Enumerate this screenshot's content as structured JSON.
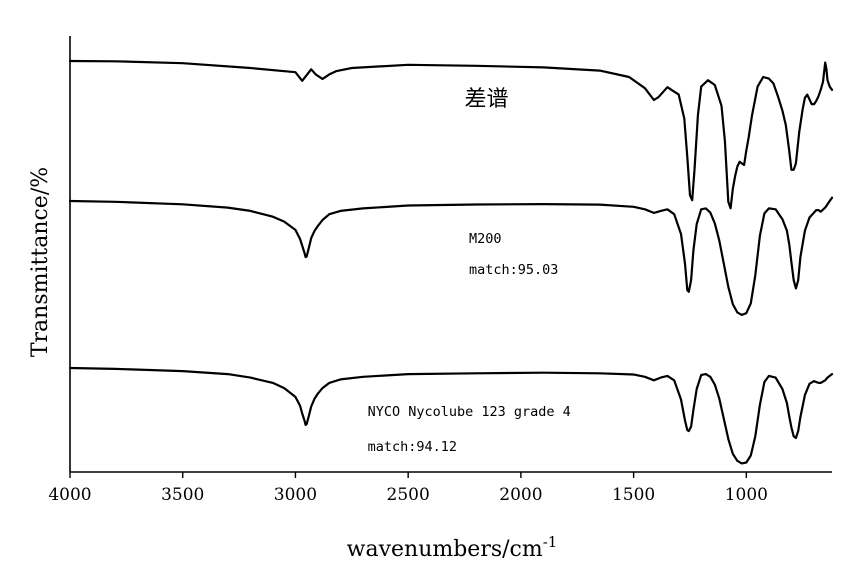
{
  "chart_data": {
    "type": "line",
    "xlabel": "wavenumbers/cm",
    "xlabel_superscript": "-1",
    "ylabel": "Transmittance/%",
    "xlim": [
      4000,
      620
    ],
    "x_reversed": true,
    "x_ticks": [
      4000,
      3500,
      3000,
      2500,
      2000,
      1500,
      1000
    ],
    "y_ticks_shown": false,
    "grid": false,
    "annotations": [
      {
        "lines": [
          "差谱"
        ],
        "x": 2250,
        "series": "diff"
      },
      {
        "lines": [
          "M200",
          "match:95.03"
        ],
        "x": 2230,
        "series": "m200"
      },
      {
        "lines": [
          "NYCO Nycolube 123 grade 4",
          "match:94.12"
        ],
        "x": 2680,
        "series": "nyco"
      }
    ],
    "series": [
      {
        "id": "diff",
        "baseline": 100,
        "x": [
          4000,
          3800,
          3500,
          3200,
          3000,
          2970,
          2950,
          2930,
          2910,
          2880,
          2850,
          2820,
          2750,
          2500,
          2200,
          1900,
          1650,
          1520,
          1450,
          1410,
          1390,
          1350,
          1300,
          1275,
          1262,
          1250,
          1240,
          1230,
          1215,
          1200,
          1170,
          1140,
          1110,
          1095,
          1080,
          1070,
          1060,
          1050,
          1040,
          1030,
          1020,
          1010,
          1000,
          990,
          975,
          950,
          925,
          900,
          880,
          860,
          840,
          825,
          810,
          800,
          790,
          780,
          765,
          750,
          740,
          730,
          720,
          710,
          700,
          690,
          680,
          670,
          660,
          650,
          645,
          640,
          630,
          620
        ],
        "y": [
          100,
          99.9,
          99.3,
          97.8,
          96.5,
          93.8,
          95.6,
          97.4,
          95.8,
          94.4,
          95.8,
          96.8,
          97.8,
          98.8,
          98.5,
          98.0,
          97.0,
          95.0,
          91.5,
          87.8,
          88.7,
          91.8,
          89.5,
          82.0,
          70.0,
          58.0,
          56.5,
          66.0,
          83.0,
          92.0,
          94.0,
          92.5,
          86.0,
          75.0,
          56.0,
          54.0,
          60.0,
          64.0,
          67.0,
          68.5,
          68.0,
          67.5,
          72.0,
          76.0,
          83.0,
          92.0,
          95.0,
          94.5,
          93.0,
          89.0,
          84.5,
          80.0,
          72.0,
          66.0,
          66.0,
          68.0,
          78.0,
          85.0,
          88.5,
          89.5,
          88.0,
          86.5,
          86.5,
          87.5,
          89.0,
          91.0,
          93.5,
          99.5,
          97.5,
          94.0,
          92.0,
          91.0
        ]
      },
      {
        "id": "m200",
        "baseline": 100,
        "x": [
          4000,
          3800,
          3500,
          3300,
          3200,
          3100,
          3050,
          3000,
          2980,
          2970,
          2960,
          2955,
          2950,
          2940,
          2930,
          2915,
          2900,
          2880,
          2850,
          2800,
          2700,
          2500,
          2200,
          1900,
          1650,
          1500,
          1450,
          1410,
          1380,
          1350,
          1320,
          1290,
          1272,
          1262,
          1255,
          1245,
          1235,
          1220,
          1200,
          1180,
          1160,
          1140,
          1120,
          1100,
          1080,
          1060,
          1040,
          1020,
          1000,
          980,
          960,
          940,
          920,
          900,
          870,
          840,
          820,
          810,
          800,
          790,
          780,
          770,
          760,
          740,
          720,
          700,
          690,
          680,
          670,
          650,
          640,
          630,
          620
        ],
        "y": [
          100,
          99.5,
          98.0,
          96.0,
          94.0,
          90.5,
          87.5,
          82.5,
          77.0,
          73.0,
          68.5,
          66.0,
          66.5,
          72.0,
          77.5,
          82.0,
          85.0,
          88.5,
          92.0,
          94.0,
          95.5,
          97.3,
          97.9,
          98.1,
          97.8,
          96.5,
          95.0,
          92.8,
          94.0,
          95.0,
          92.0,
          80.0,
          62.0,
          46.0,
          45.0,
          52.0,
          70.0,
          86.0,
          95.0,
          95.5,
          93.0,
          86.5,
          76.0,
          62.0,
          48.0,
          37.5,
          32.5,
          31.0,
          32.0,
          38.0,
          55.0,
          79.0,
          92.5,
          95.5,
          95.0,
          89.0,
          82.0,
          74.0,
          63.0,
          52.0,
          47.0,
          52.0,
          66.0,
          82.0,
          90.0,
          93.0,
          94.5,
          94.5,
          93.5,
          96.0,
          98.0,
          100.0,
          102.0
        ]
      },
      {
        "id": "nyco",
        "baseline": 100,
        "x": [
          4000,
          3800,
          3500,
          3300,
          3200,
          3100,
          3050,
          3000,
          2980,
          2970,
          2960,
          2955,
          2950,
          2940,
          2930,
          2915,
          2900,
          2880,
          2850,
          2800,
          2700,
          2500,
          2200,
          1900,
          1650,
          1500,
          1450,
          1410,
          1380,
          1350,
          1320,
          1290,
          1272,
          1262,
          1255,
          1245,
          1235,
          1220,
          1200,
          1180,
          1160,
          1140,
          1120,
          1100,
          1080,
          1060,
          1040,
          1020,
          1000,
          980,
          960,
          940,
          920,
          900,
          870,
          840,
          820,
          810,
          800,
          790,
          780,
          770,
          760,
          740,
          720,
          700,
          690,
          680,
          670,
          650,
          640,
          630,
          620
        ],
        "y": [
          100,
          99.5,
          98.2,
          96.5,
          94.5,
          91.5,
          88.5,
          83.5,
          78.5,
          74.0,
          70.0,
          67.5,
          68.0,
          73.0,
          78.0,
          82.5,
          85.5,
          88.5,
          91.5,
          93.5,
          95.0,
          96.5,
          97.0,
          97.3,
          97.0,
          96.3,
          95.0,
          93.0,
          94.5,
          95.5,
          93.0,
          82.0,
          70.0,
          64.5,
          64.0,
          66.5,
          76.0,
          88.0,
          96.0,
          96.5,
          95.0,
          90.5,
          82.5,
          71.0,
          59.5,
          51.0,
          47.0,
          45.5,
          46.0,
          50.0,
          61.0,
          79.0,
          92.0,
          95.5,
          94.5,
          88.0,
          80.0,
          72.5,
          66.0,
          61.0,
          60.0,
          64.0,
          72.0,
          84.5,
          91.0,
          92.5,
          92.0,
          91.5,
          91.5,
          93.0,
          94.5,
          95.5,
          96.5
        ]
      }
    ]
  }
}
